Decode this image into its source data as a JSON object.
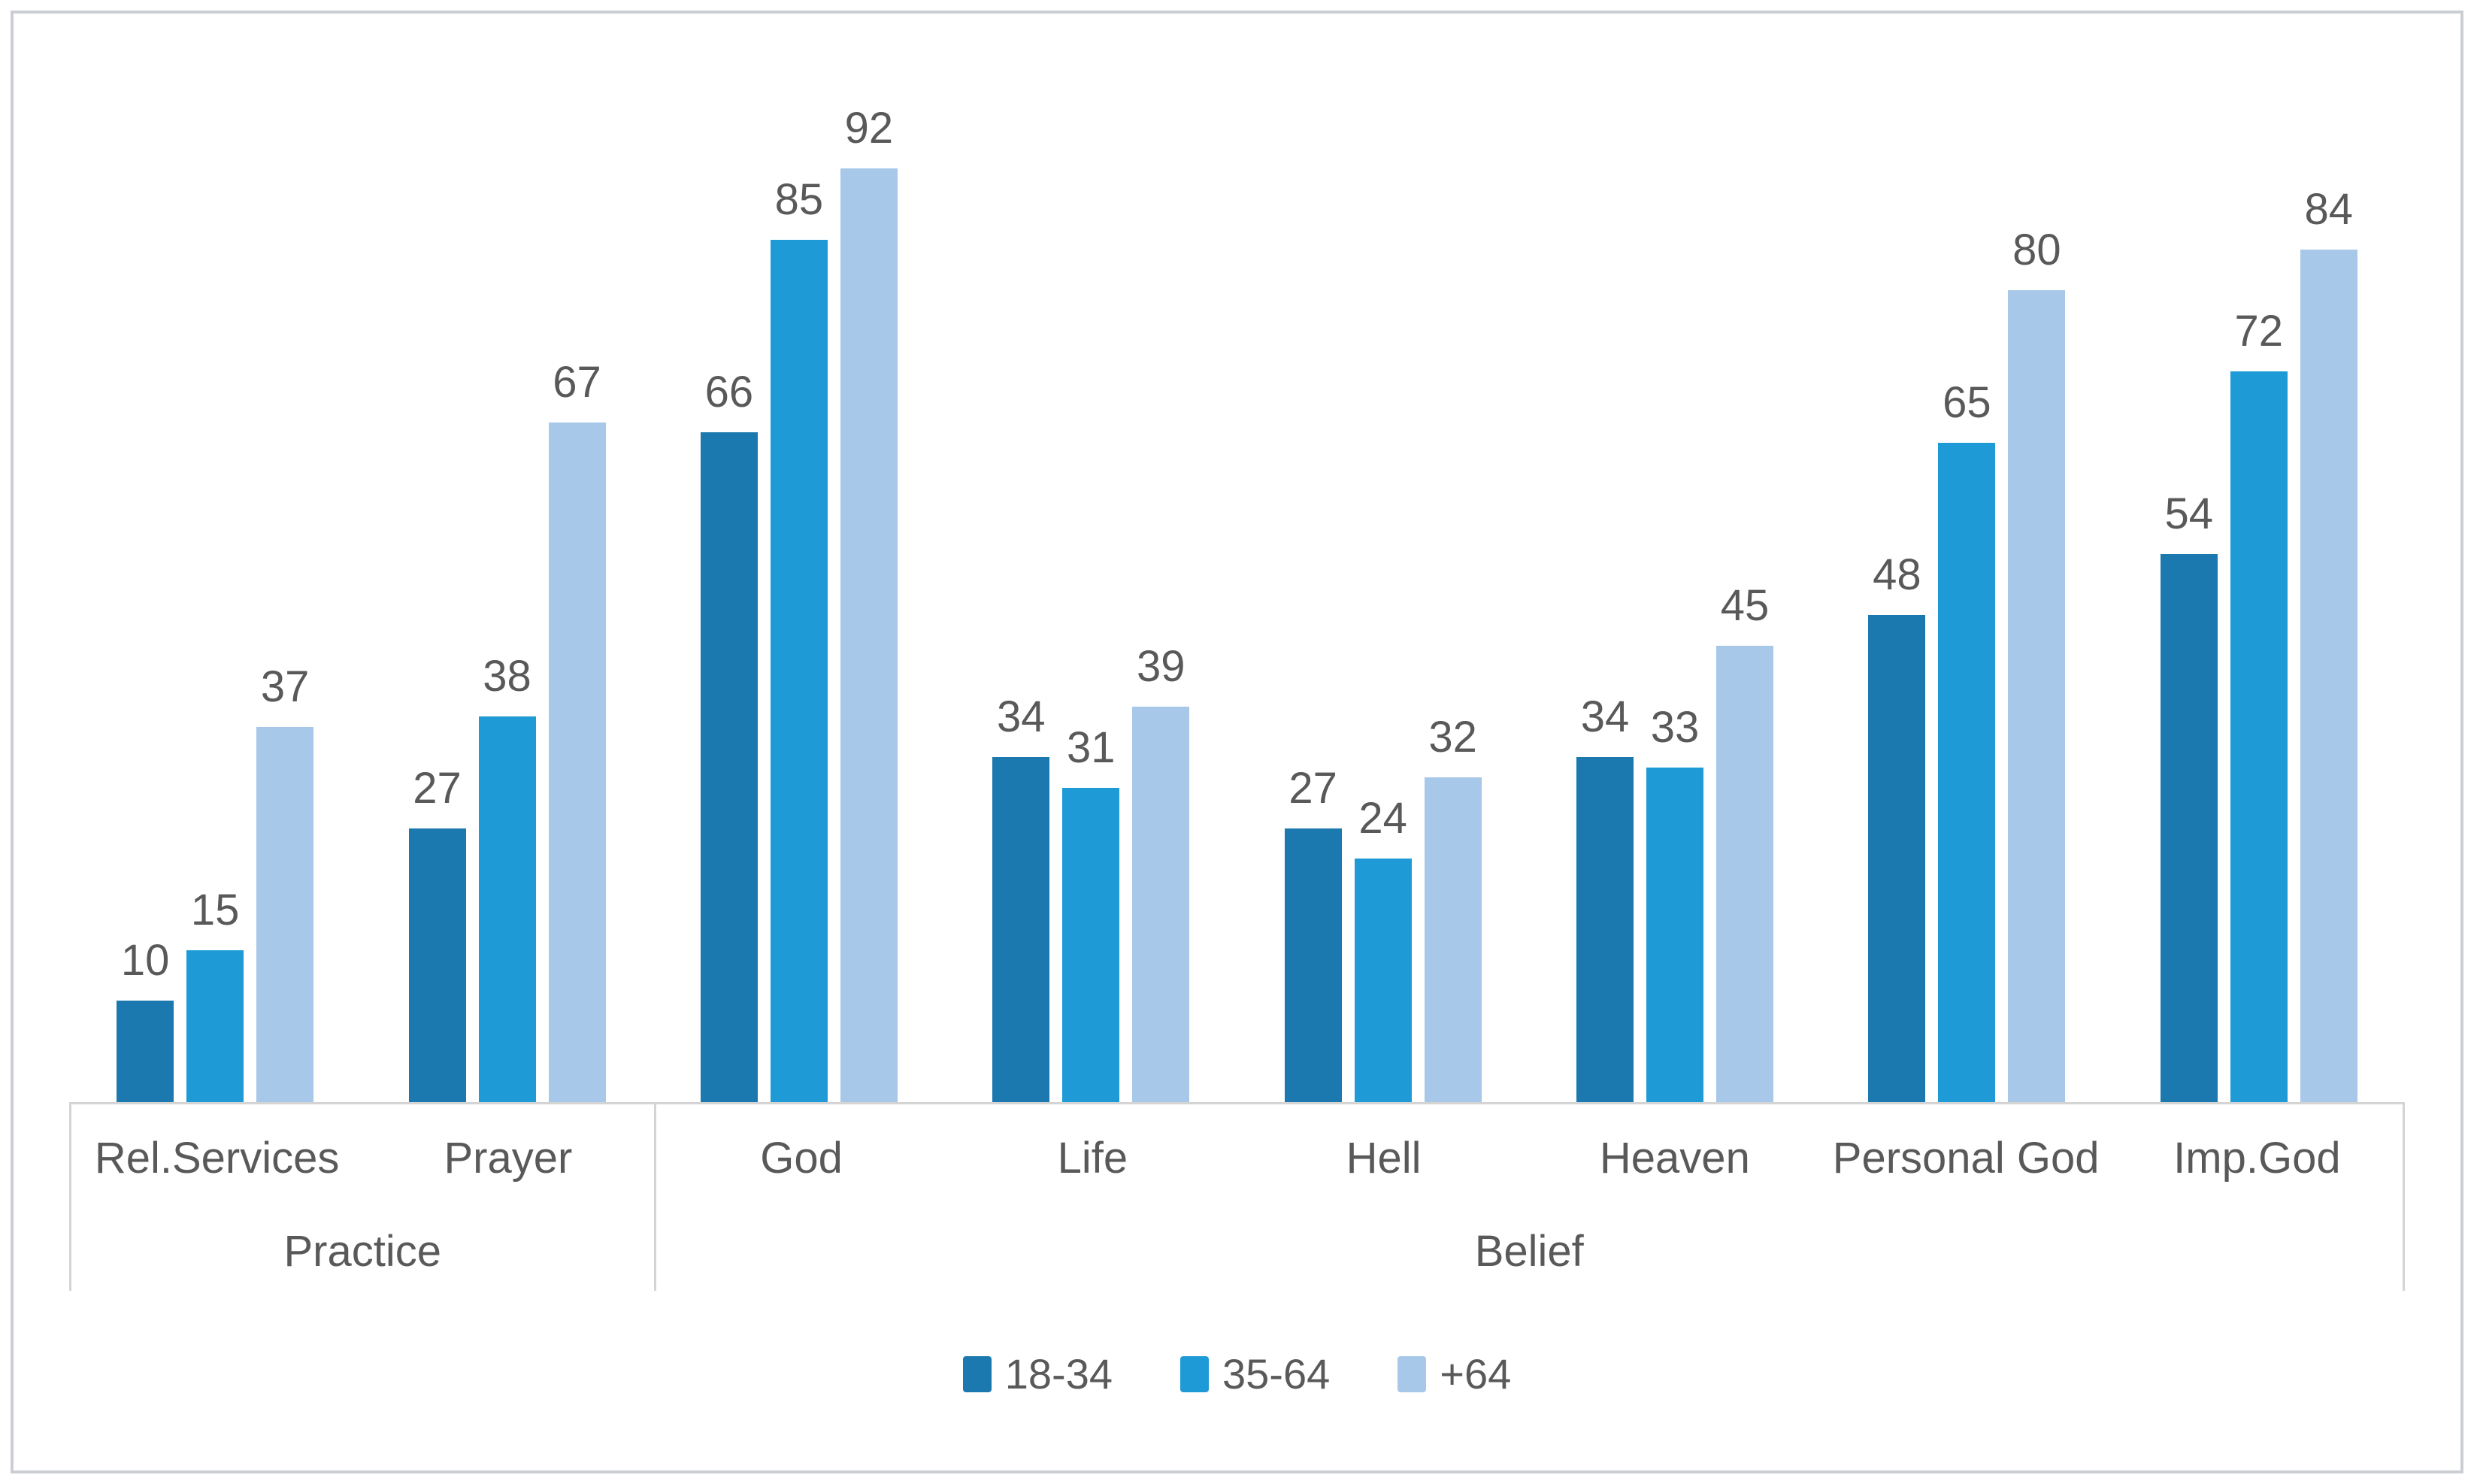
{
  "chart_data": {
    "type": "bar",
    "title": "",
    "xlabel": "",
    "ylabel": "",
    "ylim": [
      0,
      100
    ],
    "grid": false,
    "legend_position": "bottom",
    "value_labels": "outside-end",
    "categories": [
      "Rel.Services",
      "Prayer",
      "God",
      "Life",
      "Hell",
      "Heaven",
      "Personal God",
      "Imp.God"
    ],
    "category_groups": [
      {
        "label": "Practice",
        "categories": [
          "Rel.Services",
          "Prayer"
        ]
      },
      {
        "label": "Belief",
        "categories": [
          "God",
          "Life",
          "Hell",
          "Heaven",
          "Personal God",
          "Imp.God"
        ]
      }
    ],
    "series": [
      {
        "name": "18-34",
        "color": "#1b79af",
        "values": [
          10,
          27,
          66,
          34,
          27,
          34,
          48,
          54
        ]
      },
      {
        "name": "35-64",
        "color": "#1e9bd7",
        "values": [
          15,
          38,
          85,
          31,
          24,
          33,
          65,
          72
        ]
      },
      {
        "name": "+64",
        "color": "#a7c8e9",
        "values": [
          37,
          67,
          92,
          39,
          32,
          45,
          80,
          84
        ]
      }
    ],
    "colors": {
      "text": "#595959",
      "axis_line": "#d4d4d4",
      "frame_border": "#cbcfd3",
      "background": "#ffffff"
    }
  }
}
